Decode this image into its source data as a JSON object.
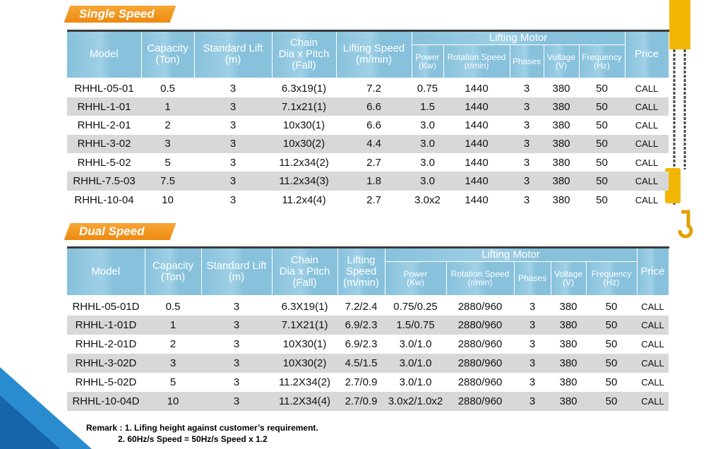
{
  "sections": [
    {
      "title": "Single Speed",
      "group": "Lifting Motor",
      "columns": [
        [
          "Model"
        ],
        [
          "Capacity",
          "(Ton)"
        ],
        [
          "Standard Lift",
          "(m)"
        ],
        [
          "Chain",
          "Dia x Pitch",
          "(Fall)"
        ],
        [
          "Lifting Speed",
          "(m/min)"
        ],
        [
          "Power",
          "(Kw)"
        ],
        [
          "Rotation Speed",
          "(r/min)"
        ],
        [
          "Phases"
        ],
        [
          "Voltage",
          "(V)"
        ],
        [
          "Frequency",
          "(Hz)"
        ],
        [
          "Price"
        ]
      ],
      "rows": [
        [
          "RHHL-05-01",
          "0.5",
          "3",
          "6.3x19(1)",
          "7.2",
          "0.75",
          "1440",
          "3",
          "380",
          "50",
          "CALL"
        ],
        [
          "RHHL-1-01",
          "1",
          "3",
          "7.1x21(1)",
          "6.6",
          "1.5",
          "1440",
          "3",
          "380",
          "50",
          "CALL"
        ],
        [
          "RHHL-2-01",
          "2",
          "3",
          "10x30(1)",
          "6.6",
          "3.0",
          "1440",
          "3",
          "380",
          "50",
          "CALL"
        ],
        [
          "RHHL-3-02",
          "3",
          "3",
          "10x30(2)",
          "4.4",
          "3.0",
          "1440",
          "3",
          "380",
          "50",
          "CALL"
        ],
        [
          "RHHL-5-02",
          "5",
          "3",
          "11.2x34(2)",
          "2.7",
          "3.0",
          "1440",
          "3",
          "380",
          "50",
          "CALL"
        ],
        [
          "RHHL-7.5-03",
          "7.5",
          "3",
          "11.2x34(3)",
          "1.8",
          "3.0",
          "1440",
          "3",
          "380",
          "50",
          "CALL"
        ],
        [
          "RHHL-10-04",
          "10",
          "3",
          "11.2x4(4)",
          "2.7",
          "3.0x2",
          "1440",
          "3",
          "380",
          "50",
          "CALL"
        ]
      ]
    },
    {
      "title": "Dual Speed",
      "group": "Lifting Motor",
      "columns": [
        [
          "Model"
        ],
        [
          "Capacity",
          "(Ton)"
        ],
        [
          "Standard Lift",
          "(m)"
        ],
        [
          "Chain",
          "Dia x Pitch",
          "(Fall)"
        ],
        [
          "Lifting",
          "Speed",
          "(m/min)"
        ],
        [
          "Power",
          "(Kw)"
        ],
        [
          "Rotation Speed",
          "(r/min)"
        ],
        [
          "Phases"
        ],
        [
          "Voltage",
          "(V)"
        ],
        [
          "Frequency",
          "(Hz)"
        ],
        [
          "Price"
        ]
      ],
      "rows": [
        [
          "RHHL-05-01D",
          "0.5",
          "3",
          "6.3X19(1)",
          "7.2/2.4",
          "0.75/0.25",
          "2880/960",
          "3",
          "380",
          "50",
          "CALL"
        ],
        [
          "RHHL-1-01D",
          "1",
          "3",
          "7.1X21(1)",
          "6.9/2.3",
          "1.5/0.75",
          "2880/960",
          "3",
          "380",
          "50",
          "CALL"
        ],
        [
          "RHHL-2-01D",
          "2",
          "3",
          "10X30(1)",
          "6.9/2.3",
          "3.0/1.0",
          "2880/960",
          "3",
          "380",
          "50",
          "CALL"
        ],
        [
          "RHHL-3-02D",
          "3",
          "3",
          "10X30(2)",
          "4.5/1.5",
          "3.0/1.0",
          "2880/960",
          "3",
          "380",
          "50",
          "CALL"
        ],
        [
          "RHHL-5-02D",
          "5",
          "3",
          "11.2X34(2)",
          "2.7/0.9",
          "3.0/1.0",
          "2880/960",
          "3",
          "380",
          "50",
          "CALL"
        ],
        [
          "RHHL-10-04D",
          "10",
          "3",
          "11.2X34(4)",
          "2.7/0.9",
          "3.0x2/1.0x2",
          "2880/960",
          "3",
          "380",
          "50",
          "CALL"
        ]
      ]
    }
  ],
  "remark": {
    "label": "Remark :",
    "lines": [
      "1. Lifing height against customer’s requirement.",
      "2. 60Hz/s Speed = 50Hz/s Speed x 1.2"
    ]
  }
}
